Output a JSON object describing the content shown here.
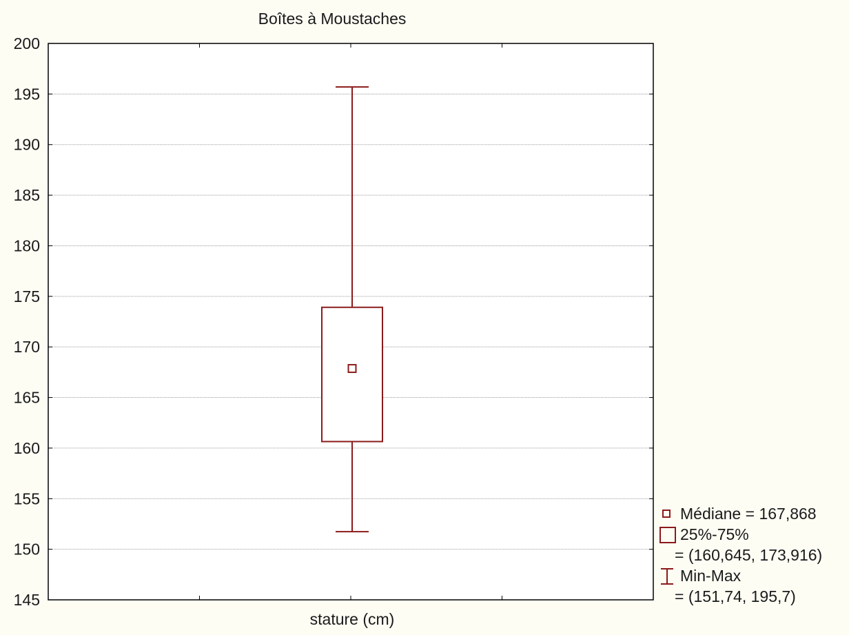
{
  "chart_data": {
    "type": "box",
    "title": "Boîtes à Moustaches",
    "categories": [
      "stature (cm)"
    ],
    "xlabel": "",
    "ylabel": "",
    "ylim": [
      145,
      200
    ],
    "yticks": [
      145,
      150,
      155,
      160,
      165,
      170,
      175,
      180,
      185,
      190,
      195,
      200
    ],
    "grid": true,
    "color": "#8b1a1a",
    "series": [
      {
        "category": "stature (cm)",
        "median": 167.868,
        "q1": 160.645,
        "q3": 173.916,
        "min": 151.74,
        "max": 195.7
      }
    ],
    "legend": {
      "position": "bottom-right",
      "median_label": "Médiane = 167,868",
      "box_label": "25%-75%",
      "box_values": "= (160,645, 173,916)",
      "range_label": "Min-Max",
      "range_values": "= (151,74, 195,7)"
    }
  }
}
